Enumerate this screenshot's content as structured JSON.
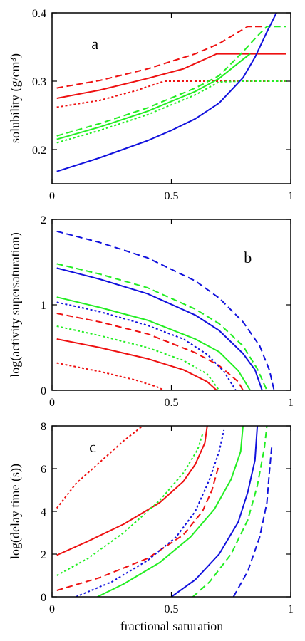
{
  "colors": {
    "red": "#ee1111",
    "green": "#22ee22",
    "blue": "#1111dd"
  },
  "xlabel": "fractional saturation",
  "chart_data": [
    {
      "type": "line",
      "panel": "a",
      "ylabel": "solubility (g/cm³)",
      "xlim": [
        0,
        1
      ],
      "ylim": [
        0.15,
        0.4
      ],
      "x_ticks": [
        {
          "value": 0,
          "label": "0"
        },
        {
          "value": 0.5,
          "label": "0.5"
        },
        {
          "value": 1,
          "label": "1"
        }
      ],
      "y_ticks": [
        {
          "value": 0.2,
          "label": "0.2"
        },
        {
          "value": 0.3,
          "label": "0.3"
        },
        {
          "value": 0.4,
          "label": "0.4"
        }
      ],
      "series": [
        {
          "color": "red",
          "style": "solid",
          "points": [
            [
              0.02,
              0.275
            ],
            [
              0.2,
              0.287
            ],
            [
              0.4,
              0.304
            ],
            [
              0.55,
              0.318
            ],
            [
              0.69,
              0.34
            ],
            [
              0.98,
              0.34
            ]
          ]
        },
        {
          "color": "red",
          "style": "dashed",
          "points": [
            [
              0.02,
              0.29
            ],
            [
              0.2,
              0.301
            ],
            [
              0.4,
              0.318
            ],
            [
              0.6,
              0.34
            ],
            [
              0.7,
              0.355
            ],
            [
              0.82,
              0.38
            ],
            [
              0.88,
              0.38
            ]
          ]
        },
        {
          "color": "red",
          "style": "dotted",
          "points": [
            [
              0.02,
              0.262
            ],
            [
              0.2,
              0.272
            ],
            [
              0.35,
              0.286
            ],
            [
              0.47,
              0.3
            ],
            [
              0.99,
              0.3
            ]
          ]
        },
        {
          "color": "green",
          "style": "solid",
          "points": [
            [
              0.02,
              0.215
            ],
            [
              0.2,
              0.233
            ],
            [
              0.4,
              0.256
            ],
            [
              0.6,
              0.285
            ],
            [
              0.7,
              0.304
            ],
            [
              0.8,
              0.332
            ],
            [
              0.83,
              0.34
            ]
          ]
        },
        {
          "color": "green",
          "style": "dashed",
          "points": [
            [
              0.02,
              0.22
            ],
            [
              0.2,
              0.238
            ],
            [
              0.4,
              0.261
            ],
            [
              0.6,
              0.29
            ],
            [
              0.7,
              0.308
            ],
            [
              0.8,
              0.343
            ],
            [
              0.86,
              0.366
            ],
            [
              0.9,
              0.38
            ],
            [
              0.98,
              0.38
            ]
          ]
        },
        {
          "color": "green",
          "style": "dotted",
          "points": [
            [
              0.02,
              0.21
            ],
            [
              0.2,
              0.228
            ],
            [
              0.4,
              0.251
            ],
            [
              0.6,
              0.28
            ],
            [
              0.7,
              0.299
            ],
            [
              0.8,
              0.3
            ],
            [
              0.99,
              0.3
            ]
          ]
        },
        {
          "color": "blue",
          "style": "solid",
          "points": [
            [
              0.02,
              0.168
            ],
            [
              0.2,
              0.188
            ],
            [
              0.4,
              0.213
            ],
            [
              0.5,
              0.228
            ],
            [
              0.6,
              0.245
            ],
            [
              0.7,
              0.268
            ],
            [
              0.8,
              0.305
            ],
            [
              0.85,
              0.335
            ],
            [
              0.9,
              0.372
            ],
            [
              0.94,
              0.4
            ]
          ]
        }
      ]
    },
    {
      "type": "line",
      "panel": "b",
      "ylabel": "log(activity supersaturation)",
      "xlim": [
        0,
        1
      ],
      "ylim": [
        0,
        2
      ],
      "x_ticks": [
        {
          "value": 0,
          "label": "0"
        },
        {
          "value": 0.5,
          "label": "0.5"
        },
        {
          "value": 1,
          "label": "1"
        }
      ],
      "y_ticks": [
        {
          "value": 0,
          "label": "0"
        },
        {
          "value": 1,
          "label": "1"
        },
        {
          "value": 2,
          "label": "2"
        }
      ],
      "series": [
        {
          "color": "red",
          "style": "solid",
          "points": [
            [
              0.02,
              0.6
            ],
            [
              0.2,
              0.5
            ],
            [
              0.4,
              0.37
            ],
            [
              0.55,
              0.24
            ],
            [
              0.65,
              0.1
            ],
            [
              0.69,
              0.0
            ]
          ]
        },
        {
          "color": "red",
          "style": "dashed",
          "points": [
            [
              0.02,
              0.9
            ],
            [
              0.2,
              0.8
            ],
            [
              0.4,
              0.66
            ],
            [
              0.6,
              0.44
            ],
            [
              0.7,
              0.29
            ],
            [
              0.78,
              0.1
            ],
            [
              0.8,
              0.0
            ]
          ]
        },
        {
          "color": "red",
          "style": "dotted",
          "points": [
            [
              0.02,
              0.32
            ],
            [
              0.2,
              0.22
            ],
            [
              0.35,
              0.12
            ],
            [
              0.44,
              0.04
            ],
            [
              0.47,
              0.0
            ]
          ]
        },
        {
          "color": "green",
          "style": "solid",
          "points": [
            [
              0.02,
              1.09
            ],
            [
              0.2,
              0.97
            ],
            [
              0.4,
              0.82
            ],
            [
              0.6,
              0.6
            ],
            [
              0.7,
              0.45
            ],
            [
              0.78,
              0.23
            ],
            [
              0.83,
              0.0
            ]
          ]
        },
        {
          "color": "green",
          "style": "dashed",
          "points": [
            [
              0.02,
              1.48
            ],
            [
              0.2,
              1.36
            ],
            [
              0.4,
              1.2
            ],
            [
              0.6,
              0.95
            ],
            [
              0.7,
              0.78
            ],
            [
              0.8,
              0.52
            ],
            [
              0.86,
              0.25
            ],
            [
              0.9,
              0.0
            ]
          ]
        },
        {
          "color": "green",
          "style": "dotted",
          "points": [
            [
              0.02,
              0.75
            ],
            [
              0.2,
              0.64
            ],
            [
              0.4,
              0.5
            ],
            [
              0.55,
              0.35
            ],
            [
              0.65,
              0.19
            ],
            [
              0.7,
              0.0
            ]
          ]
        },
        {
          "color": "blue",
          "style": "solid",
          "points": [
            [
              0.02,
              1.43
            ],
            [
              0.2,
              1.3
            ],
            [
              0.4,
              1.13
            ],
            [
              0.6,
              0.88
            ],
            [
              0.7,
              0.7
            ],
            [
              0.8,
              0.43
            ],
            [
              0.85,
              0.24
            ],
            [
              0.88,
              0.0
            ]
          ]
        },
        {
          "color": "blue",
          "style": "dashed",
          "points": [
            [
              0.02,
              1.86
            ],
            [
              0.2,
              1.73
            ],
            [
              0.4,
              1.55
            ],
            [
              0.6,
              1.28
            ],
            [
              0.7,
              1.08
            ],
            [
              0.8,
              0.8
            ],
            [
              0.87,
              0.52
            ],
            [
              0.91,
              0.24
            ],
            [
              0.93,
              0.0
            ]
          ]
        },
        {
          "color": "blue",
          "style": "dotted",
          "points": [
            [
              0.02,
              1.03
            ],
            [
              0.2,
              0.92
            ],
            [
              0.4,
              0.76
            ],
            [
              0.55,
              0.6
            ],
            [
              0.65,
              0.42
            ],
            [
              0.72,
              0.22
            ],
            [
              0.77,
              0.0
            ]
          ]
        }
      ]
    },
    {
      "type": "line",
      "panel": "c",
      "ylabel": "log(delay time (s))",
      "xlim": [
        0,
        1
      ],
      "ylim": [
        0,
        8
      ],
      "x_ticks": [
        {
          "value": 0,
          "label": "0"
        },
        {
          "value": 0.5,
          "label": "0.5"
        },
        {
          "value": 1,
          "label": "1"
        }
      ],
      "y_ticks": [
        {
          "value": 0,
          "label": "0"
        },
        {
          "value": 2,
          "label": "2"
        },
        {
          "value": 4,
          "label": "4"
        },
        {
          "value": 6,
          "label": "6"
        },
        {
          "value": 8,
          "label": "8"
        }
      ],
      "series": [
        {
          "color": "red",
          "style": "solid",
          "points": [
            [
              0.02,
              1.95
            ],
            [
              0.15,
              2.6
            ],
            [
              0.3,
              3.4
            ],
            [
              0.45,
              4.4
            ],
            [
              0.55,
              5.4
            ],
            [
              0.6,
              6.2
            ],
            [
              0.64,
              7.2
            ],
            [
              0.65,
              8.0
            ]
          ]
        },
        {
          "color": "red",
          "style": "dashed",
          "points": [
            [
              0.02,
              0.3
            ],
            [
              0.2,
              0.9
            ],
            [
              0.4,
              1.8
            ],
            [
              0.55,
              2.9
            ],
            [
              0.63,
              4.0
            ],
            [
              0.67,
              5.0
            ],
            [
              0.7,
              6.2
            ]
          ]
        },
        {
          "color": "red",
          "style": "dotted",
          "points": [
            [
              0.02,
              4.15
            ],
            [
              0.1,
              5.3
            ],
            [
              0.2,
              6.3
            ],
            [
              0.3,
              7.3
            ],
            [
              0.38,
              8.0
            ]
          ]
        },
        {
          "color": "green",
          "style": "solid",
          "points": [
            [
              0.19,
              0.0
            ],
            [
              0.3,
              0.6
            ],
            [
              0.45,
              1.6
            ],
            [
              0.58,
              2.8
            ],
            [
              0.68,
              4.1
            ],
            [
              0.75,
              5.5
            ],
            [
              0.79,
              6.8
            ],
            [
              0.8,
              8.0
            ]
          ]
        },
        {
          "color": "green",
          "style": "dashed",
          "points": [
            [
              0.59,
              0.0
            ],
            [
              0.66,
              0.7
            ],
            [
              0.75,
              2.0
            ],
            [
              0.82,
              3.6
            ],
            [
              0.86,
              5.2
            ],
            [
              0.89,
              7.0
            ],
            [
              0.9,
              8.0
            ]
          ]
        },
        {
          "color": "green",
          "style": "dotted",
          "points": [
            [
              0.02,
              1.0
            ],
            [
              0.15,
              1.8
            ],
            [
              0.3,
              3.0
            ],
            [
              0.45,
              4.5
            ],
            [
              0.55,
              5.8
            ],
            [
              0.61,
              6.9
            ],
            [
              0.63,
              7.6
            ]
          ]
        },
        {
          "color": "blue",
          "style": "solid",
          "points": [
            [
              0.5,
              0.0
            ],
            [
              0.6,
              0.8
            ],
            [
              0.7,
              2.0
            ],
            [
              0.78,
              3.5
            ],
            [
              0.82,
              4.9
            ],
            [
              0.85,
              6.4
            ],
            [
              0.86,
              8.0
            ]
          ]
        },
        {
          "color": "blue",
          "style": "dashed",
          "points": [
            [
              0.76,
              0.0
            ],
            [
              0.82,
              1.2
            ],
            [
              0.87,
              2.8
            ],
            [
              0.9,
              4.4
            ],
            [
              0.91,
              5.8
            ],
            [
              0.92,
              7.0
            ]
          ]
        },
        {
          "color": "blue",
          "style": "dotted",
          "points": [
            [
              0.1,
              0.0
            ],
            [
              0.25,
              0.7
            ],
            [
              0.4,
              1.7
            ],
            [
              0.52,
              2.8
            ],
            [
              0.6,
              4.0
            ],
            [
              0.66,
              5.5
            ],
            [
              0.7,
              6.8
            ],
            [
              0.72,
              7.8
            ]
          ]
        }
      ]
    }
  ]
}
